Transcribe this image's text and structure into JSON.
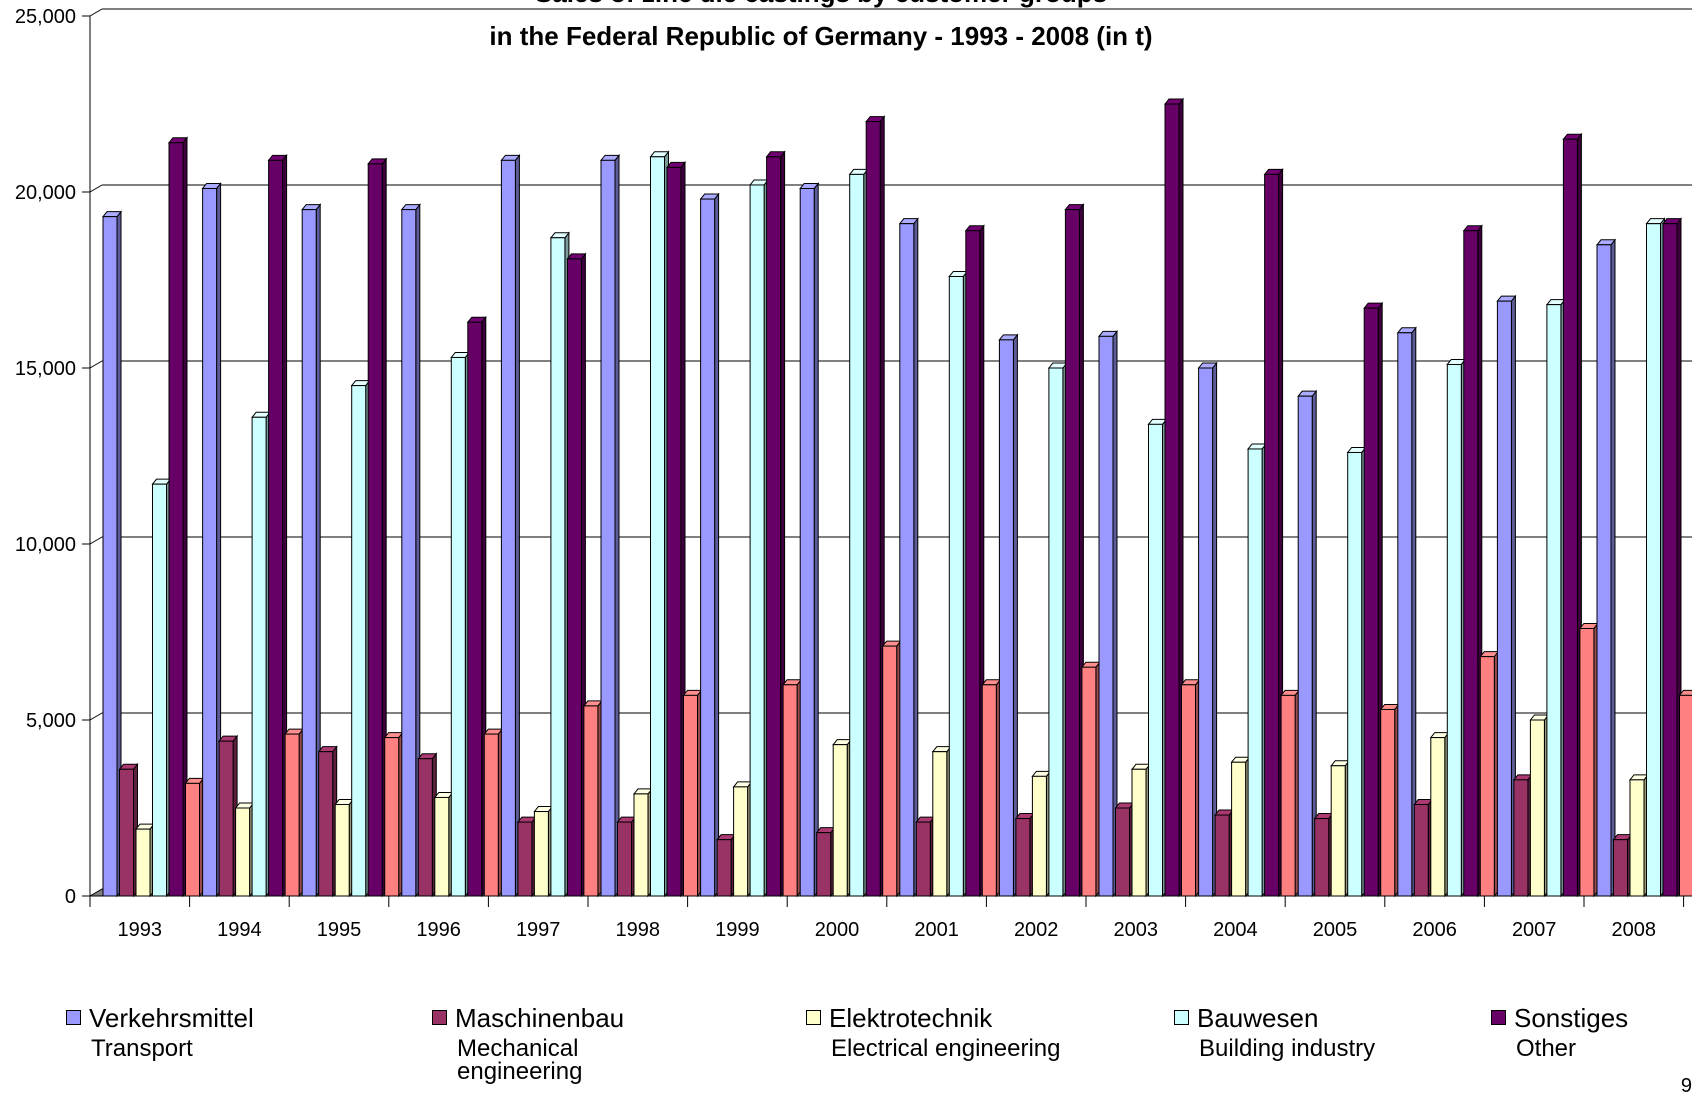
{
  "chart_data": {
    "type": "bar",
    "title": [
      "Sales of zinc die castings by customer groups",
      "in the Federal Republic of Germany - 1993 - 2008 (in t)"
    ],
    "categories": [
      "1993",
      "1994",
      "1995",
      "1996",
      "1997",
      "1998",
      "1999",
      "2000",
      "2001",
      "2002",
      "2003",
      "2004",
      "2005",
      "2006",
      "2007",
      "2008"
    ],
    "ylim": [
      0,
      25000
    ],
    "yticks": [
      0,
      5000,
      10000,
      15000,
      20000,
      25000
    ],
    "ytick_labels": [
      "0",
      "5,000",
      "10,000",
      "15,000",
      "20,000",
      "25,000"
    ],
    "grid": true,
    "legend_position": "bottom",
    "series": [
      {
        "name": "Verkehrsmittel",
        "name_en": "Transport",
        "color": "#9999FF",
        "values": [
          19300,
          20100,
          19500,
          19500,
          20900,
          20900,
          19800,
          20100,
          19100,
          15800,
          15900,
          15000,
          14200,
          16000,
          16900,
          18500
        ]
      },
      {
        "name": "Maschinenbau",
        "name_en": "Mechanical engineering",
        "color": "#993366",
        "values": [
          3600,
          4400,
          4100,
          3900,
          2100,
          2100,
          1600,
          1800,
          2100,
          2200,
          2500,
          2300,
          2200,
          2600,
          3300,
          1600
        ]
      },
      {
        "name": "Elektrotechnik",
        "name_en": "Electrical engineering",
        "color": "#FFFFCC",
        "values": [
          1900,
          2500,
          2600,
          2800,
          2400,
          2900,
          3100,
          4300,
          4100,
          3400,
          3600,
          3800,
          3700,
          4500,
          5000,
          3300
        ]
      },
      {
        "name": "Bauwesen",
        "name_en": "Building industry",
        "color": "#CCFFFF",
        "values": [
          11700,
          13600,
          14500,
          15300,
          18700,
          21000,
          20200,
          20500,
          17600,
          15000,
          13400,
          12700,
          12600,
          15100,
          16800,
          19100
        ]
      },
      {
        "name": "Sonstiges",
        "name_en": "Other",
        "color": "#660066",
        "values": [
          21400,
          20900,
          20800,
          16300,
          18100,
          20700,
          21000,
          22000,
          18900,
          19500,
          22500,
          20500,
          16700,
          18900,
          21500,
          19100
        ]
      },
      {
        "color": "#FF8080",
        "values": [
          3200,
          4600,
          4500,
          4600,
          5400,
          5700,
          6000,
          7100,
          6000,
          6500,
          6000,
          5700,
          5300,
          6800,
          7600,
          5700
        ]
      }
    ]
  },
  "page": {
    "number": "9"
  }
}
